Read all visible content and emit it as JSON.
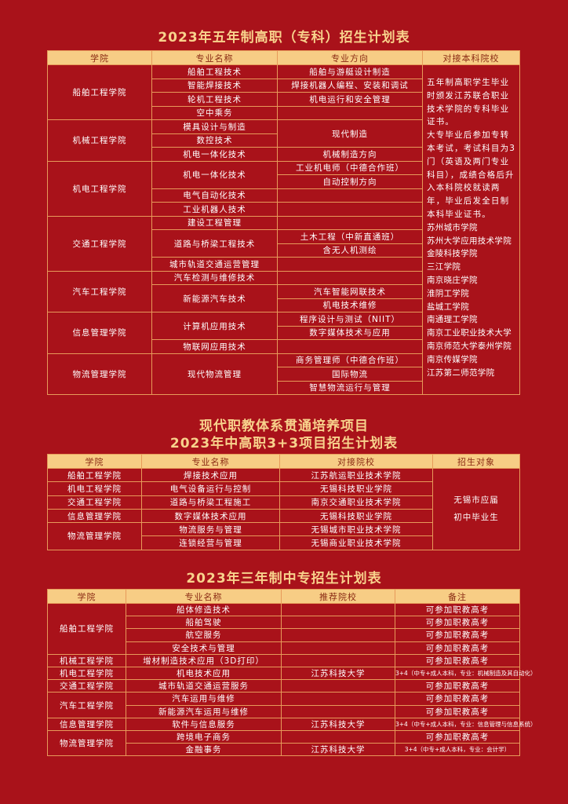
{
  "table1": {
    "title": "2023年五年制高职（专科）招生计划表",
    "headers": [
      "学院",
      "专业名称",
      "专业方向",
      "对接本科院校"
    ],
    "side_text": [
      "五年制高职学生毕业时颁发江苏联合职业技术学院的专科毕业证书。",
      "大专毕业后参加专转本考试，考试科目为3门（英语及两门专业科目），成绩合格后升入本科院校就读两年，毕业后发全日制本科毕业证书。",
      "苏州城市学院",
      "苏州大学应用技术学院",
      "金陵科技学院",
      "三江学院",
      "南京晓庄学院",
      "淮阴工学院",
      "盐城工学院",
      "南通理工学院",
      "南京工业职业技术大学",
      "南京师范大学泰州学院",
      "南京传媒学院",
      "江苏第二师范学院"
    ],
    "rows": [
      [
        {
          "t": "船舶工程学院",
          "rs": 4
        },
        "船舶工程技术",
        "船舶与游艇设计制造"
      ],
      [
        "智能焊接技术",
        "焊接机器人编程、安装和调试"
      ],
      [
        "轮机工程技术",
        "机电运行和安全管理"
      ],
      [
        "空中乘务",
        ""
      ],
      [
        {
          "t": "机械工程学院",
          "rs": 3
        },
        "模具设计与制造",
        {
          "t": "现代制造",
          "rs": 2
        }
      ],
      [
        "数控技术"
      ],
      [
        "机电一体化技术",
        "机械制造方向"
      ],
      [
        {
          "t": "机电工程学院",
          "rs": 4
        },
        {
          "t": "机电一体化技术",
          "rs": 2
        },
        "工业机电师（中德合作班）"
      ],
      [
        "自动控制方向"
      ],
      [
        "电气自动化技术",
        ""
      ],
      [
        "工业机器人技术",
        ""
      ],
      [
        {
          "t": "交通工程学院",
          "rs": 4
        },
        "建设工程管理",
        ""
      ],
      [
        {
          "t": "道路与桥梁工程技术",
          "rs": 2
        },
        "土木工程（中新直通班）"
      ],
      [
        "含无人机测绘"
      ],
      [
        "城市轨道交通运营管理",
        ""
      ],
      [
        {
          "t": "汽车工程学院",
          "rs": 3
        },
        "汽车检测与维修技术",
        ""
      ],
      [
        {
          "t": "新能源汽车技术",
          "rs": 2
        },
        "汽车智能网联技术"
      ],
      [
        "机电技术维修"
      ],
      [
        {
          "t": "信息管理学院",
          "rs": 3
        },
        {
          "t": "计算机应用技术",
          "rs": 2
        },
        "程序设计与测试（NIIT）"
      ],
      [
        "数字媒体技术与应用"
      ],
      [
        "物联网应用技术",
        ""
      ],
      [
        {
          "t": "物流管理学院",
          "rs": 3
        },
        {
          "t": "现代物流管理",
          "rs": 3
        },
        "商务管理师（中德合作班）"
      ],
      [
        "国际物流"
      ],
      [
        "智慧物流运行与管理"
      ]
    ]
  },
  "table2": {
    "title_line1": "现代职教体系贯通培养项目",
    "title_line2": "2023年中高职3+3项目招生计划表",
    "headers": [
      "学院",
      "专业名称",
      "对接院校",
      "招生对象"
    ],
    "rows": [
      [
        "船舶工程学院",
        "焊接技术应用",
        "江苏航运职业技术学院",
        {
          "t": "无锡市应届\n初中毕业生",
          "rs": 6
        }
      ],
      [
        "机电工程学院",
        "电气设备运行与控制",
        "无锡科技职业学院"
      ],
      [
        "交通工程学院",
        "道路与桥梁工程施工",
        "南京交通职业技术学院"
      ],
      [
        "信息管理学院",
        "数字媒体技术应用",
        "无锡科技职业学院"
      ],
      [
        {
          "t": "物流管理学院",
          "rs": 2
        },
        "物流服务与管理",
        "无锡城市职业技术学院"
      ],
      [
        "连锁经营与管理",
        "无锡商业职业技术学院"
      ]
    ]
  },
  "table3": {
    "title": "2023年三年制中专招生计划表",
    "headers": [
      "学院",
      "专业名称",
      "推荐院校",
      "备注"
    ],
    "rows": [
      [
        {
          "t": "船舶工程学院",
          "rs": 4
        },
        "船体修造技术",
        "",
        "可参加职教高考"
      ],
      [
        "船舶驾驶",
        "",
        "可参加职教高考"
      ],
      [
        "航空服务",
        "",
        "可参加职教高考"
      ],
      [
        "安全技术与管理",
        "",
        "可参加职教高考"
      ],
      [
        "机械工程学院",
        "增材制造技术应用（3D打印）",
        "",
        "可参加职教高考"
      ],
      [
        "机电工程学院",
        "机电技术应用",
        "江苏科技大学",
        {
          "t": "3+4（中专+成人本科，专业：机械制造及其自动化）",
          "small": true
        }
      ],
      [
        "交通工程学院",
        "城市轨道交通运营服务",
        "",
        "可参加职教高考"
      ],
      [
        {
          "t": "汽车工程学院",
          "rs": 2
        },
        "汽车运用与维修",
        "",
        "可参加职教高考"
      ],
      [
        "新能源汽车运用与维修",
        "",
        "可参加职教高考"
      ],
      [
        "信息管理学院",
        "软件与信息服务",
        "江苏科技大学",
        {
          "t": "3+4（中专+成人本科，专业：信息管理与信息系统）",
          "small": true
        }
      ],
      [
        {
          "t": "物流管理学院",
          "rs": 2
        },
        "跨境电子商务",
        "",
        "可参加职教高考"
      ],
      [
        "金融事务",
        "江苏科技大学",
        {
          "t": "3+4（中专+成人本科，专业：会计学）",
          "small": true
        }
      ]
    ]
  },
  "colors": {
    "background": "#a9121a",
    "header_band": "#f7cd85",
    "title": "#f8d28c",
    "border": "#e79a5a"
  }
}
